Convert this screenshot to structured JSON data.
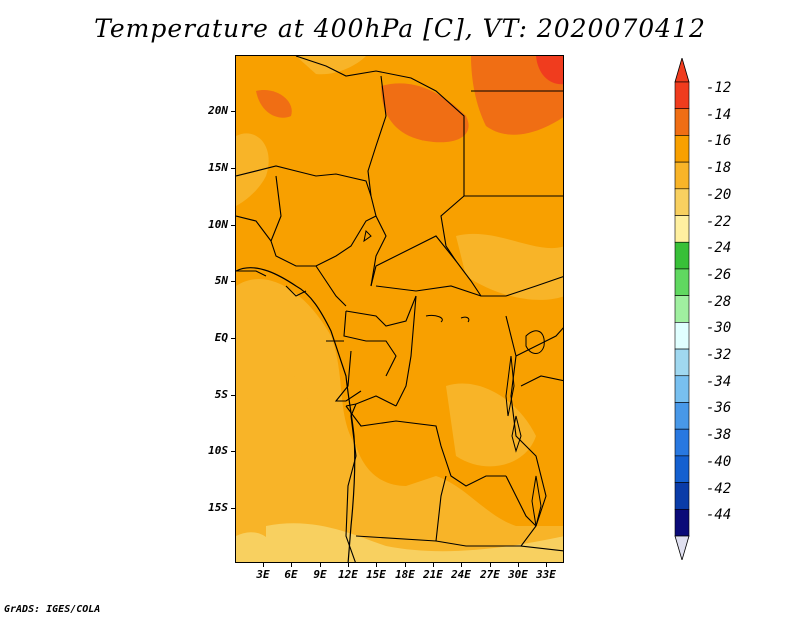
{
  "title": "Temperature at 400hPa [C], VT: 2020070412",
  "footer": "GrADS: IGES/COLA",
  "lat_labels": [
    "20N",
    "15N",
    "10N",
    "5N",
    "EQ",
    "5S",
    "10S",
    "15S"
  ],
  "lon_labels": [
    "3E",
    "6E",
    "9E",
    "12E",
    "15E",
    "18E",
    "21E",
    "24E",
    "27E",
    "30E",
    "33E"
  ],
  "legend": {
    "labels": [
      "-12",
      "-14",
      "-16",
      "-18",
      "-20",
      "-22",
      "-24",
      "-26",
      "-28",
      "-30",
      "-32",
      "-34",
      "-36",
      "-38",
      "-40",
      "-42",
      "-44"
    ],
    "colors": [
      "#F03C1E",
      "#F06E14",
      "#F8A000",
      "#F8B428",
      "#F8D060",
      "#FFF0A0",
      "#38C038",
      "#60D860",
      "#A0F0A0",
      "#E0FFFF",
      "#A0D8F0",
      "#78C0F0",
      "#4898E8",
      "#2878E0",
      "#1460D0",
      "#0A3CA8",
      "#0A0A78"
    ],
    "top_arrow_color": "#F03C1E",
    "bottom_arrow_color": "#E0E0F0"
  }
}
